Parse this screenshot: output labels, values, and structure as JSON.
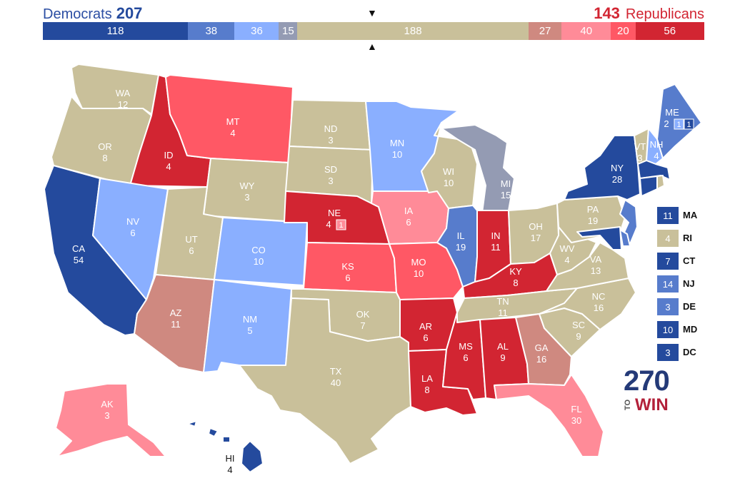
{
  "header": {
    "dem_label": "Democrats",
    "dem_total": "207",
    "rep_total": "143",
    "rep_label": "Republicans",
    "arrow_down": "▼",
    "arrow_up": "▲"
  },
  "colors": {
    "solid_d": "#244a9d",
    "likely_d": "#577ccc",
    "lean_d": "#8aafff",
    "tilt_d": "#949bb3",
    "tossup": "#c9c09a",
    "tilt_r": "#cf8980",
    "lean_r": "#ff8b98",
    "likely_r": "#ff5865",
    "solid_r": "#d22532"
  },
  "bar_segments": [
    {
      "value": 118,
      "label": "118",
      "rating": "solid_d"
    },
    {
      "value": 38,
      "label": "38",
      "rating": "likely_d"
    },
    {
      "value": 36,
      "label": "36",
      "rating": "lean_d"
    },
    {
      "value": 15,
      "label": "15",
      "rating": "tilt_d"
    },
    {
      "value": 188,
      "label": "188",
      "rating": "tossup"
    },
    {
      "value": 27,
      "label": "27",
      "rating": "tilt_r"
    },
    {
      "value": 40,
      "label": "40",
      "rating": "lean_r"
    },
    {
      "value": 20,
      "label": "20",
      "rating": "likely_r"
    },
    {
      "value": 56,
      "label": "56",
      "rating": "solid_r"
    }
  ],
  "states": [
    {
      "abbr": "WA",
      "ev": "12",
      "rating": "tossup"
    },
    {
      "abbr": "OR",
      "ev": "8",
      "rating": "tossup"
    },
    {
      "abbr": "CA",
      "ev": "54",
      "rating": "solid_d"
    },
    {
      "abbr": "ID",
      "ev": "4",
      "rating": "solid_r"
    },
    {
      "abbr": "NV",
      "ev": "6",
      "rating": "lean_d"
    },
    {
      "abbr": "MT",
      "ev": "4",
      "rating": "likely_r"
    },
    {
      "abbr": "WY",
      "ev": "3",
      "rating": "tossup"
    },
    {
      "abbr": "UT",
      "ev": "6",
      "rating": "tossup"
    },
    {
      "abbr": "AZ",
      "ev": "11",
      "rating": "tilt_r"
    },
    {
      "abbr": "CO",
      "ev": "10",
      "rating": "lean_d"
    },
    {
      "abbr": "NM",
      "ev": "5",
      "rating": "lean_d"
    },
    {
      "abbr": "ND",
      "ev": "3",
      "rating": "tossup"
    },
    {
      "abbr": "SD",
      "ev": "3",
      "rating": "tossup"
    },
    {
      "abbr": "NE",
      "ev": "4",
      "ev_extra": "1",
      "rating": "solid_r"
    },
    {
      "abbr": "KS",
      "ev": "6",
      "rating": "likely_r"
    },
    {
      "abbr": "OK",
      "ev": "7",
      "rating": "tossup"
    },
    {
      "abbr": "TX",
      "ev": "40",
      "rating": "tossup"
    },
    {
      "abbr": "MN",
      "ev": "10",
      "rating": "lean_d"
    },
    {
      "abbr": "IA",
      "ev": "6",
      "rating": "lean_r"
    },
    {
      "abbr": "MO",
      "ev": "10",
      "rating": "likely_r"
    },
    {
      "abbr": "AR",
      "ev": "6",
      "rating": "solid_r"
    },
    {
      "abbr": "LA",
      "ev": "8",
      "rating": "solid_r"
    },
    {
      "abbr": "WI",
      "ev": "10",
      "rating": "tossup"
    },
    {
      "abbr": "IL",
      "ev": "19",
      "rating": "likely_d"
    },
    {
      "abbr": "MI",
      "ev": "15",
      "rating": "tilt_d"
    },
    {
      "abbr": "IN",
      "ev": "11",
      "rating": "solid_r"
    },
    {
      "abbr": "OH",
      "ev": "17",
      "rating": "tossup"
    },
    {
      "abbr": "KY",
      "ev": "8",
      "rating": "solid_r"
    },
    {
      "abbr": "TN",
      "ev": "11",
      "rating": "tossup"
    },
    {
      "abbr": "MS",
      "ev": "6",
      "rating": "solid_r"
    },
    {
      "abbr": "AL",
      "ev": "9",
      "rating": "solid_r"
    },
    {
      "abbr": "GA",
      "ev": "16",
      "rating": "tilt_r"
    },
    {
      "abbr": "FL",
      "ev": "30",
      "rating": "lean_r"
    },
    {
      "abbr": "SC",
      "ev": "9",
      "rating": "tossup"
    },
    {
      "abbr": "NC",
      "ev": "16",
      "rating": "tossup"
    },
    {
      "abbr": "VA",
      "ev": "13",
      "rating": "tossup"
    },
    {
      "abbr": "WV",
      "ev": "4",
      "rating": "tossup"
    },
    {
      "abbr": "PA",
      "ev": "19",
      "rating": "tossup"
    },
    {
      "abbr": "NY",
      "ev": "28",
      "rating": "solid_d"
    },
    {
      "abbr": "VT",
      "ev": "3",
      "rating": "tossup"
    },
    {
      "abbr": "NH",
      "ev": "4",
      "rating": "lean_d"
    },
    {
      "abbr": "ME",
      "ev": "2",
      "ev_extra": "1",
      "ev_extra2": "1",
      "rating": "likely_d"
    },
    {
      "abbr": "AK",
      "ev": "3",
      "rating": "lean_r"
    },
    {
      "abbr": "HI",
      "ev": "4",
      "rating": "solid_d"
    }
  ],
  "legend": [
    {
      "abbr": "MA",
      "ev": "11",
      "rating": "solid_d"
    },
    {
      "abbr": "RI",
      "ev": "4",
      "rating": "tossup"
    },
    {
      "abbr": "CT",
      "ev": "7",
      "rating": "solid_d"
    },
    {
      "abbr": "NJ",
      "ev": "14",
      "rating": "likely_d"
    },
    {
      "abbr": "DE",
      "ev": "3",
      "rating": "likely_d"
    },
    {
      "abbr": "MD",
      "ev": "10",
      "rating": "solid_d"
    },
    {
      "abbr": "DC",
      "ev": "3",
      "rating": "solid_d"
    }
  ],
  "logo": {
    "number": "270",
    "to": "TO",
    "win": "WIN"
  }
}
